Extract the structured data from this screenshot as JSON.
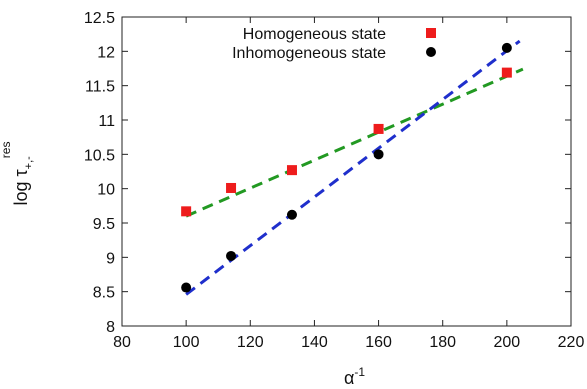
{
  "chart_data": {
    "type": "scatter",
    "xlabel": "α",
    "xlabel_superscript": "-1",
    "ylabel_base": "log τ",
    "ylabel_subscript": "+,-",
    "ylabel_superscript": "res",
    "xlim": [
      80,
      220
    ],
    "ylim": [
      8,
      12.5
    ],
    "xticks": [
      80,
      100,
      120,
      140,
      160,
      180,
      200,
      220
    ],
    "yticks": [
      8,
      8.5,
      9,
      9.5,
      10,
      10.5,
      11,
      11.5,
      12,
      12.5
    ],
    "ytick_labels": [
      "8",
      "8.5",
      "9",
      "9.5",
      "10",
      "10.5",
      "11",
      "11.5",
      "12",
      "12.5"
    ],
    "legend_position": "top-right",
    "series": [
      {
        "name": "Homogeneous state",
        "marker": "square",
        "color": "#ee1c1c",
        "x": [
          100,
          114,
          133,
          160,
          200
        ],
        "y": [
          9.67,
          10.01,
          10.27,
          10.87,
          11.69
        ],
        "fit": {
          "x": [
            100,
            205
          ],
          "y": [
            9.6,
            11.74
          ],
          "color": "#229922"
        }
      },
      {
        "name": "Inhomogeneous state",
        "marker": "circle",
        "color": "#000000",
        "x": [
          100,
          114,
          133,
          160,
          200
        ],
        "y": [
          8.56,
          9.02,
          9.62,
          10.5,
          12.05
        ],
        "fit": {
          "x": [
            100,
            204
          ],
          "y": [
            8.46,
            12.15
          ],
          "color": "#1f2fcc"
        }
      }
    ]
  }
}
